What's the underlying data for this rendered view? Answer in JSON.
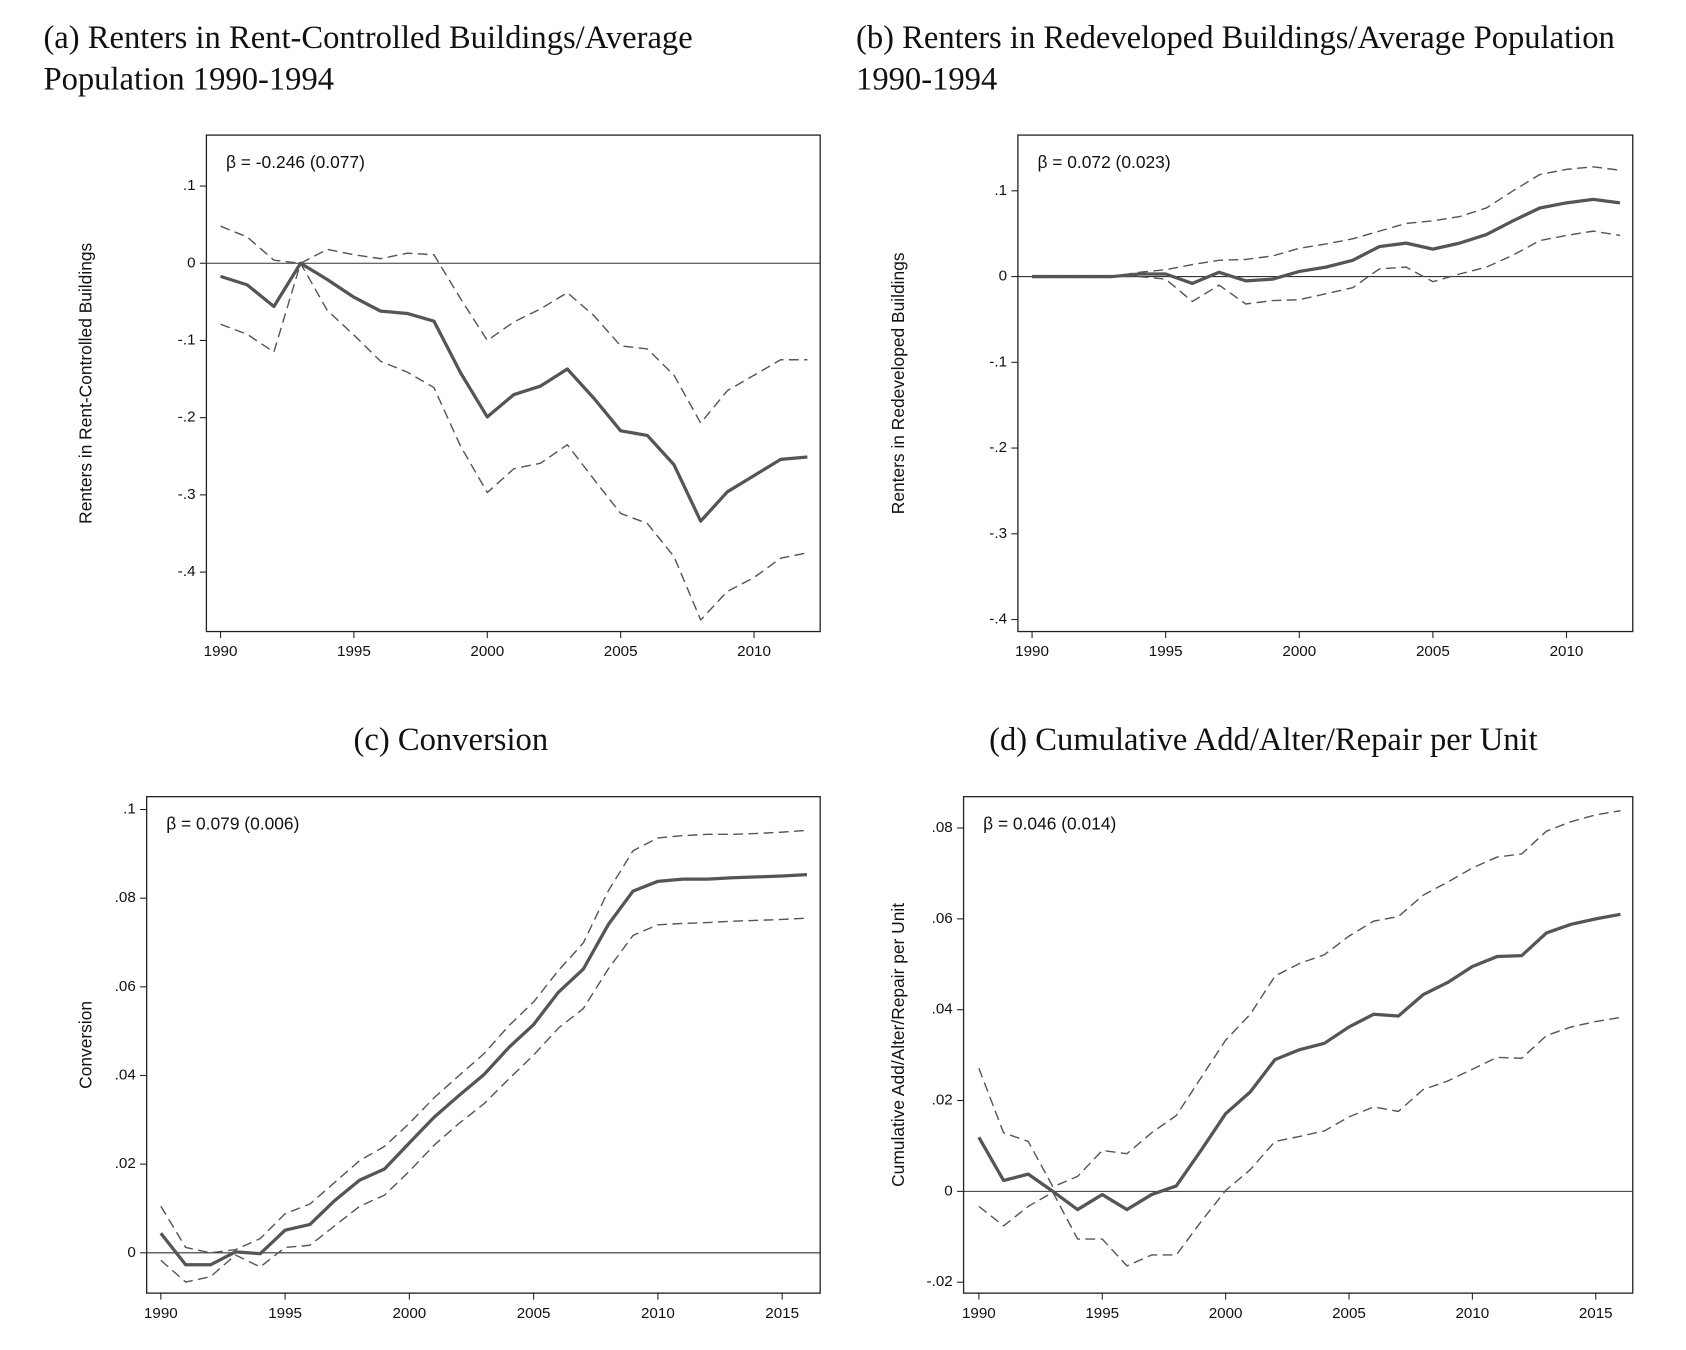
{
  "chart_data": [
    {
      "type": "line",
      "title": "(a) Renters in Rent-Controlled Buildings/Average Population 1990-1994",
      "ylabel": "Renters in Rent-Controlled Buildings",
      "annotation": "β = -0.246 (0.077)",
      "x": [
        1990,
        1991,
        1992,
        1993,
        1994,
        1995,
        1996,
        1997,
        1998,
        1999,
        2000,
        2001,
        2002,
        2003,
        2004,
        2005,
        2006,
        2007,
        2008,
        2009,
        2010,
        2011,
        2012
      ],
      "series": [
        {
          "color": "#555555",
          "dashed": false,
          "values": [
            -0.017,
            -0.028,
            -0.056,
            0,
            -0.021,
            -0.044,
            -0.062,
            -0.065,
            -0.075,
            -0.142,
            -0.199,
            -0.17,
            -0.159,
            -0.137,
            -0.175,
            -0.217,
            -0.223,
            -0.261,
            -0.334,
            -0.296,
            -0.275,
            -0.254,
            -0.251
          ]
        },
        {
          "color": "#555555",
          "dashed": true,
          "values": [
            0.048,
            0.034,
            0.004,
            0,
            0.018,
            0.011,
            0.006,
            0.013,
            0.011,
            -0.046,
            -0.1,
            -0.076,
            -0.059,
            -0.038,
            -0.068,
            -0.107,
            -0.111,
            -0.145,
            -0.207,
            -0.165,
            -0.145,
            -0.125,
            -0.125
          ]
        },
        {
          "color": "#555555",
          "dashed": true,
          "values": [
            -0.079,
            -0.092,
            -0.115,
            0,
            -0.061,
            -0.093,
            -0.127,
            -0.141,
            -0.161,
            -0.237,
            -0.297,
            -0.266,
            -0.259,
            -0.235,
            -0.28,
            -0.324,
            -0.337,
            -0.38,
            -0.462,
            -0.425,
            -0.407,
            -0.382,
            -0.375
          ]
        }
      ],
      "xlim": [
        1989.47,
        2012.48
      ],
      "ylim": [
        -0.477,
        0.166
      ],
      "xticks": [
        1990,
        1995,
        2000,
        2005,
        2010
      ],
      "yticks": [
        {
          "value": 0.1,
          "label": ".1"
        },
        0,
        {
          "value": -0.1,
          "label": "-.1"
        },
        {
          "value": -0.2,
          "label": "-.2"
        },
        {
          "value": -0.3,
          "label": "-.3"
        },
        {
          "value": -0.4,
          "label": "-.4"
        }
      ],
      "hline": 0
    },
    {
      "type": "line",
      "title": "(b) Renters in Redeveloped Buildings/Average Population 1990-1994",
      "ylabel": "Renters in Redeveloped Buildings",
      "annotation": "β = 0.072 (0.023)",
      "x": [
        1990,
        1991,
        1992,
        1993,
        1994,
        1995,
        1996,
        1997,
        1998,
        1999,
        2000,
        2001,
        2002,
        2003,
        2004,
        2005,
        2006,
        2007,
        2008,
        2009,
        2010,
        2011,
        2012
      ],
      "series": [
        {
          "color": "#555555",
          "dashed": false,
          "values": [
            0,
            0,
            0,
            0,
            0.003,
            0.003,
            -0.008,
            0.005,
            -0.005,
            -0.003,
            0.006,
            0.011,
            0.019,
            0.035,
            0.039,
            0.032,
            0.039,
            0.049,
            0.065,
            0.08,
            0.086,
            0.09,
            0.086
          ]
        },
        {
          "color": "#555555",
          "dashed": true,
          "values": [
            0,
            0,
            0,
            0,
            0.005,
            0.008,
            0.014,
            0.019,
            0.02,
            0.024,
            0.033,
            0.038,
            0.044,
            0.053,
            0.062,
            0.065,
            0.07,
            0.08,
            0.1,
            0.119,
            0.125,
            0.128,
            0.124
          ]
        },
        {
          "color": "#555555",
          "dashed": true,
          "values": [
            0,
            0,
            0,
            0,
            0,
            -0.003,
            -0.029,
            -0.01,
            -0.032,
            -0.028,
            -0.027,
            -0.02,
            -0.013,
            0.009,
            0.011,
            -0.006,
            0.003,
            0.011,
            0.025,
            0.042,
            0.048,
            0.053,
            0.048
          ]
        }
      ],
      "xlim": [
        1989.47,
        2012.48
      ],
      "ylim": [
        -0.414,
        0.165
      ],
      "xticks": [
        1990,
        1995,
        2000,
        2005,
        2010
      ],
      "yticks": [
        {
          "value": 0.1,
          "label": ".1"
        },
        0,
        {
          "value": -0.1,
          "label": "-.1"
        },
        {
          "value": -0.2,
          "label": "-.2"
        },
        {
          "value": -0.3,
          "label": "-.3"
        },
        {
          "value": -0.4,
          "label": "-.4"
        }
      ],
      "hline": 0
    },
    {
      "type": "line",
      "title": "(c) Conversion",
      "ylabel": "Conversion",
      "annotation": "β = 0.079 (0.006)",
      "x": [
        1990,
        1991,
        1992,
        1993,
        1994,
        1995,
        1996,
        1997,
        1998,
        1999,
        2000,
        2001,
        2002,
        2003,
        2004,
        2005,
        2006,
        2007,
        2008,
        2009,
        2010,
        2011,
        2012,
        2013,
        2014,
        2015,
        2016
      ],
      "series": [
        {
          "color": "#555555",
          "dashed": false,
          "values": [
            0.0044,
            -0.0027,
            -0.0027,
            0.0002,
            -0.0002,
            0.0051,
            0.0064,
            0.0118,
            0.0164,
            0.0189,
            0.0248,
            0.0306,
            0.0355,
            0.0402,
            0.0463,
            0.0515,
            0.0588,
            0.064,
            0.074,
            0.0816,
            0.0838,
            0.0843,
            0.0843,
            0.0846,
            0.0848,
            0.085,
            0.0853
          ]
        },
        {
          "color": "#555555",
          "dashed": true,
          "values": [
            0.0105,
            0.0012,
            0,
            0.0007,
            0.0032,
            0.0088,
            0.011,
            0.0159,
            0.0208,
            0.024,
            0.0292,
            0.035,
            0.04,
            0.0449,
            0.0512,
            0.0566,
            0.0637,
            0.0699,
            0.0816,
            0.0907,
            0.0936,
            0.0941,
            0.0944,
            0.0944,
            0.0946,
            0.0949,
            0.0953
          ]
        },
        {
          "color": "#555555",
          "dashed": true,
          "values": [
            -0.0017,
            -0.0066,
            -0.0054,
            -0.0005,
            -0.0032,
            0.0012,
            0.0017,
            0.0061,
            0.0105,
            0.013,
            0.0184,
            0.0243,
            0.0292,
            0.0336,
            0.0392,
            0.0446,
            0.0507,
            0.0551,
            0.064,
            0.0716,
            0.074,
            0.0743,
            0.0745,
            0.0748,
            0.075,
            0.0752,
            0.0755
          ]
        }
      ],
      "xlim": [
        1989.43,
        2016.53
      ],
      "ylim": [
        -0.0091,
        0.1029
      ],
      "xticks": [
        1990,
        1995,
        2000,
        2005,
        2010,
        2015
      ],
      "yticks": [
        0,
        {
          "value": 0.02,
          "label": ".02"
        },
        {
          "value": 0.04,
          "label": ".04"
        },
        {
          "value": 0.06,
          "label": ".06"
        },
        {
          "value": 0.08,
          "label": ".08"
        },
        {
          "value": 0.1,
          "label": ".1"
        }
      ],
      "hline": 0
    },
    {
      "type": "line",
      "title": "(d) Cumulative Add/Alter/Repair per Unit",
      "ylabel": "Cumulative Add/Alter/Repair per Unit",
      "annotation": "β = 0.046 (0.014)",
      "x": [
        1990,
        1991,
        1992,
        1993,
        1994,
        1995,
        1996,
        1997,
        1998,
        1999,
        2000,
        2001,
        2002,
        2003,
        2004,
        2005,
        2006,
        2007,
        2008,
        2009,
        2010,
        2011,
        2012,
        2013,
        2014,
        2015,
        2016
      ],
      "series": [
        {
          "color": "#555555",
          "dashed": false,
          "values": [
            0.0119,
            0.0024,
            0.0038,
            0,
            -0.004,
            -0.0007,
            -0.004,
            -0.0007,
            0.0012,
            0.009,
            0.0171,
            0.0219,
            0.029,
            0.0312,
            0.0326,
            0.0362,
            0.039,
            0.0386,
            0.0433,
            0.046,
            0.0495,
            0.0517,
            0.0519,
            0.0569,
            0.0588,
            0.06,
            0.061
          ]
        },
        {
          "color": "#555555",
          "dashed": true,
          "values": [
            0.0271,
            0.0129,
            0.011,
            0.001,
            0.0033,
            0.009,
            0.0083,
            0.0129,
            0.0167,
            0.025,
            0.0333,
            0.039,
            0.0474,
            0.0502,
            0.0521,
            0.0562,
            0.0595,
            0.0605,
            0.0652,
            0.0681,
            0.0712,
            0.0736,
            0.0743,
            0.0793,
            0.0814,
            0.0829,
            0.0838
          ]
        },
        {
          "color": "#555555",
          "dashed": true,
          "values": [
            -0.0033,
            -0.0076,
            -0.0033,
            -0.0002,
            -0.0105,
            -0.0105,
            -0.0164,
            -0.014,
            -0.014,
            -0.0067,
            0.0002,
            0.0048,
            0.011,
            0.0121,
            0.0133,
            0.0164,
            0.0186,
            0.0176,
            0.0224,
            0.0243,
            0.0269,
            0.0295,
            0.0293,
            0.0343,
            0.0362,
            0.0374,
            0.0383
          ]
        }
      ],
      "xlim": [
        1989.38,
        2016.5
      ],
      "ylim": [
        -0.0224,
        0.0869
      ],
      "xticks": [
        1990,
        1995,
        2000,
        2005,
        2010,
        2015
      ],
      "yticks": [
        {
          "value": -0.02,
          "label": "-.02"
        },
        0,
        {
          "value": 0.02,
          "label": ".02"
        },
        {
          "value": 0.04,
          "label": ".04"
        },
        {
          "value": 0.06,
          "label": ".06"
        },
        {
          "value": 0.08,
          "label": ".08"
        }
      ],
      "hline": 0
    }
  ]
}
